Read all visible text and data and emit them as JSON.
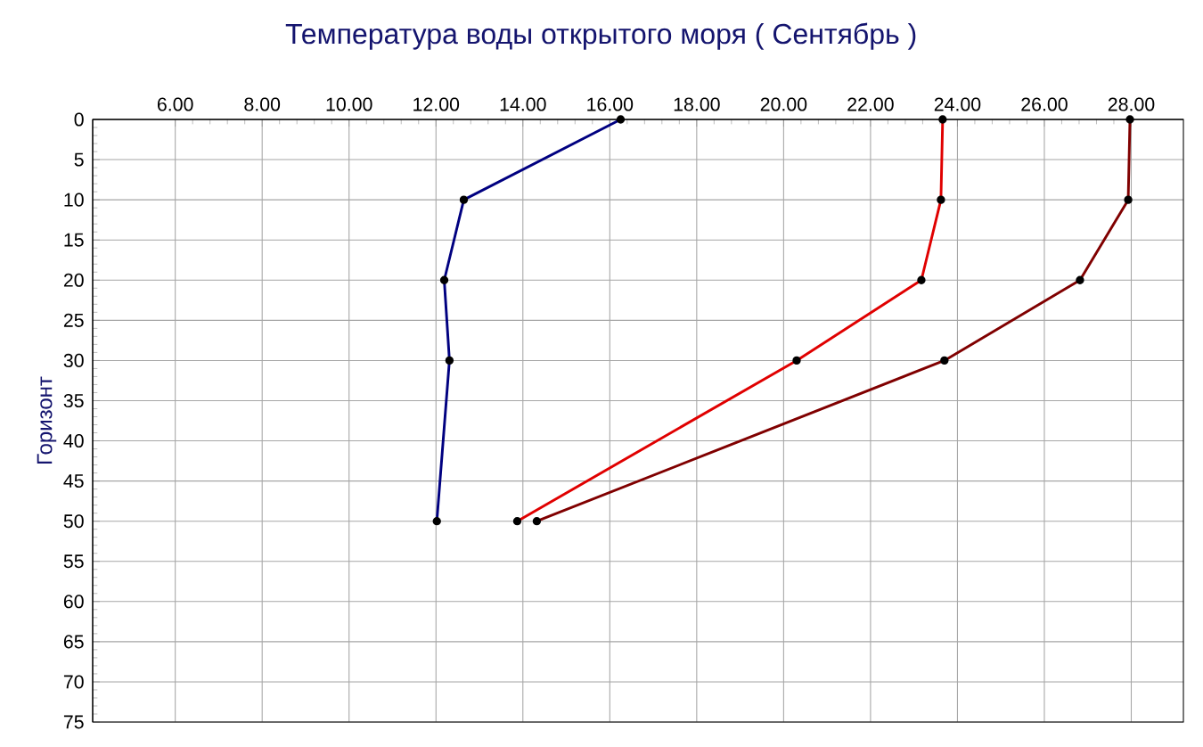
{
  "chart_data": {
    "type": "line",
    "title": "Температура воды открытого моря     ( Сентябрь )",
    "ylabel": "Горизонт",
    "xlim": [
      4.1,
      29.2
    ],
    "ylim": [
      75,
      0
    ],
    "xticks": [
      {
        "value": 6,
        "label": "6.00"
      },
      {
        "value": 8,
        "label": "8.00"
      },
      {
        "value": 10,
        "label": "10.00"
      },
      {
        "value": 12,
        "label": "12.00"
      },
      {
        "value": 14,
        "label": "14.00"
      },
      {
        "value": 16,
        "label": "16.00"
      },
      {
        "value": 18,
        "label": "18.00"
      },
      {
        "value": 20,
        "label": "20.00"
      },
      {
        "value": 22,
        "label": "22.00"
      },
      {
        "value": 24,
        "label": "24.00"
      },
      {
        "value": 26,
        "label": "26.00"
      },
      {
        "value": 28,
        "label": "28.00"
      }
    ],
    "yticks": [
      0,
      5,
      10,
      15,
      20,
      25,
      30,
      35,
      40,
      45,
      50,
      55,
      60,
      65,
      70,
      75
    ],
    "grid": true,
    "marker": "circle",
    "line_style": "solid",
    "series": [
      {
        "color": "#000080",
        "x": [
          16.25,
          12.64,
          12.19,
          12.31,
          12.02
        ],
        "values": [
          0,
          10,
          20,
          30,
          50
        ]
      },
      {
        "color": "#e00000",
        "x": [
          23.66,
          23.62,
          23.17,
          20.3,
          13.87
        ],
        "values": [
          0,
          10,
          20,
          30,
          50
        ]
      },
      {
        "color": "#800000",
        "x": [
          27.97,
          27.93,
          26.82,
          23.7,
          14.32
        ],
        "values": [
          0,
          10,
          20,
          30,
          50
        ]
      }
    ]
  }
}
